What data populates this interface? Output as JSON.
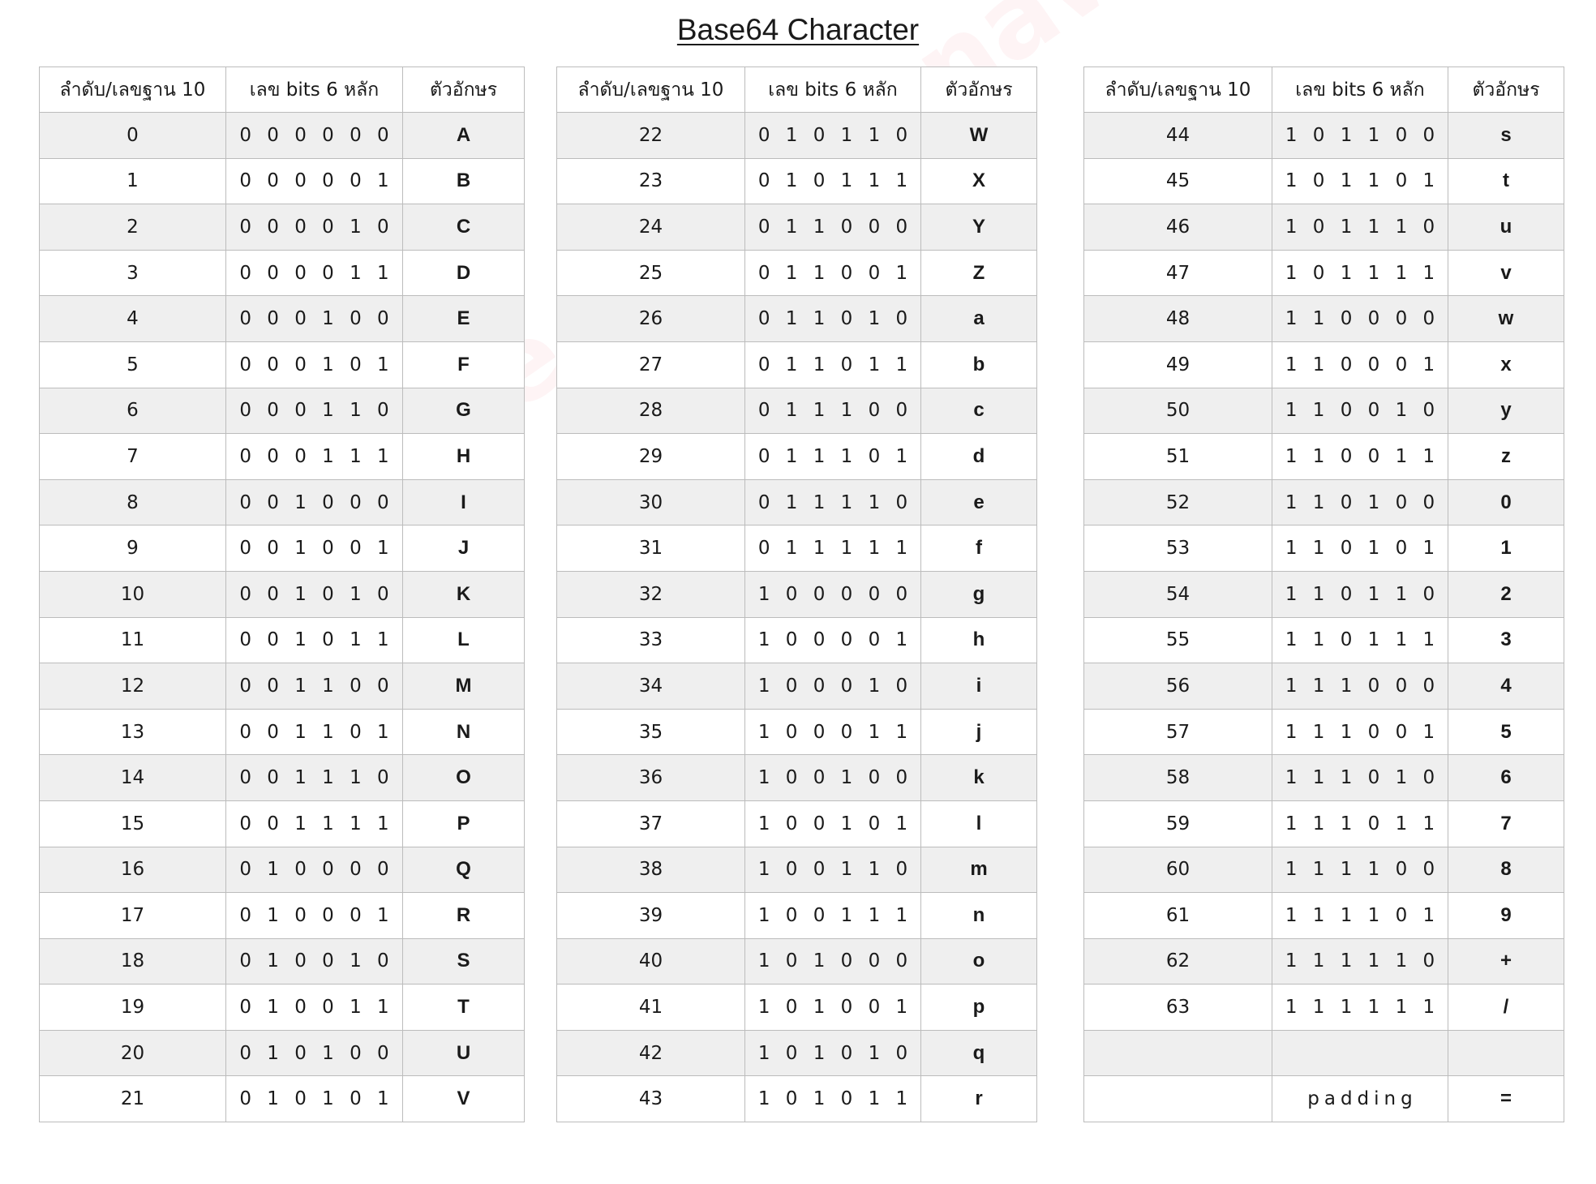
{
  "title": "Base64 Character",
  "watermark": "Create by: thanawat.mas",
  "headers": [
    "ลำดับ/เลขฐาน 10",
    "เลข bits  6 หลัก",
    "ตัวอักษร"
  ],
  "tables": [
    {
      "rows": [
        [
          "0",
          "0 0 0 0 0 0",
          "A"
        ],
        [
          "1",
          "0 0 0 0 0 1",
          "B"
        ],
        [
          "2",
          "0 0 0 0 1 0",
          "C"
        ],
        [
          "3",
          "0 0 0 0 1 1",
          "D"
        ],
        [
          "4",
          "0 0 0 1 0 0",
          "E"
        ],
        [
          "5",
          "0 0 0 1 0 1",
          "F"
        ],
        [
          "6",
          "0 0 0 1 1 0",
          "G"
        ],
        [
          "7",
          "0 0 0 1 1 1",
          "H"
        ],
        [
          "8",
          "0 0 1 0 0 0",
          "I"
        ],
        [
          "9",
          "0 0 1 0 0 1",
          "J"
        ],
        [
          "10",
          "0 0 1 0 1 0",
          "K"
        ],
        [
          "11",
          "0 0 1 0 1 1",
          "L"
        ],
        [
          "12",
          "0 0 1 1 0 0",
          "M"
        ],
        [
          "13",
          "0 0 1 1 0 1",
          "N"
        ],
        [
          "14",
          "0 0 1 1 1 0",
          "O"
        ],
        [
          "15",
          "0 0 1 1 1 1",
          "P"
        ],
        [
          "16",
          "0 1 0 0 0 0",
          "Q"
        ],
        [
          "17",
          "0 1 0 0 0 1",
          "R"
        ],
        [
          "18",
          "0 1 0 0 1 0",
          "S"
        ],
        [
          "19",
          "0 1 0 0 1 1",
          "T"
        ],
        [
          "20",
          "0 1 0 1 0 0",
          "U"
        ],
        [
          "21",
          "0 1 0 1 0 1",
          "V"
        ]
      ]
    },
    {
      "rows": [
        [
          "22",
          "0 1 0 1 1 0",
          "W"
        ],
        [
          "23",
          "0 1 0 1 1 1",
          "X"
        ],
        [
          "24",
          "0 1 1 0 0 0",
          "Y"
        ],
        [
          "25",
          "0 1 1 0 0 1",
          "Z"
        ],
        [
          "26",
          "0 1 1 0 1 0",
          "a"
        ],
        [
          "27",
          "0 1 1 0 1 1",
          "b"
        ],
        [
          "28",
          "0 1 1 1 0 0",
          "c"
        ],
        [
          "29",
          "0 1 1 1 0 1",
          "d"
        ],
        [
          "30",
          "0 1 1 1 1 0",
          "e"
        ],
        [
          "31",
          "0 1 1 1 1 1",
          "f"
        ],
        [
          "32",
          "1 0 0 0 0 0",
          "g"
        ],
        [
          "33",
          "1 0 0 0 0 1",
          "h"
        ],
        [
          "34",
          "1 0 0 0 1 0",
          "i"
        ],
        [
          "35",
          "1 0 0 0 1 1",
          "j"
        ],
        [
          "36",
          "1 0 0 1 0 0",
          "k"
        ],
        [
          "37",
          "1 0 0 1 0 1",
          "l"
        ],
        [
          "38",
          "1 0 0 1 1 0",
          "m"
        ],
        [
          "39",
          "1 0 0 1 1 1",
          "n"
        ],
        [
          "40",
          "1 0 1 0 0 0",
          "o"
        ],
        [
          "41",
          "1 0 1 0 0 1",
          "p"
        ],
        [
          "42",
          "1 0 1 0 1 0",
          "q"
        ],
        [
          "43",
          "1 0 1 0 1 1",
          "r"
        ]
      ]
    },
    {
      "rows": [
        [
          "44",
          "1 0 1 1 0 0",
          "s"
        ],
        [
          "45",
          "1 0 1 1 0 1",
          "t"
        ],
        [
          "46",
          "1 0 1 1 1 0",
          "u"
        ],
        [
          "47",
          "1 0 1 1 1 1",
          "v"
        ],
        [
          "48",
          "1 1 0 0 0 0",
          "w"
        ],
        [
          "49",
          "1 1 0 0 0 1",
          "x"
        ],
        [
          "50",
          "1 1 0 0 1 0",
          "y"
        ],
        [
          "51",
          "1 1 0 0 1 1",
          "z"
        ],
        [
          "52",
          "1 1 0 1 0 0",
          "0"
        ],
        [
          "53",
          "1 1 0 1 0 1",
          "1"
        ],
        [
          "54",
          "1 1 0 1 1 0",
          "2"
        ],
        [
          "55",
          "1 1 0 1 1 1",
          "3"
        ],
        [
          "56",
          "1 1 1 0 0 0",
          "4"
        ],
        [
          "57",
          "1 1 1 0 0 1",
          "5"
        ],
        [
          "58",
          "1 1 1 0 1 0",
          "6"
        ],
        [
          "59",
          "1 1 1 0 1 1",
          "7"
        ],
        [
          "60",
          "1 1 1 1 0 0",
          "8"
        ],
        [
          "61",
          "1 1 1 1 0 1",
          "9"
        ],
        [
          "62",
          "1 1 1 1 1 0",
          "+"
        ],
        [
          "63",
          "1 1 1 1 1 1",
          "/"
        ],
        [
          "",
          "",
          ""
        ],
        [
          "",
          "padding",
          "="
        ]
      ]
    }
  ]
}
